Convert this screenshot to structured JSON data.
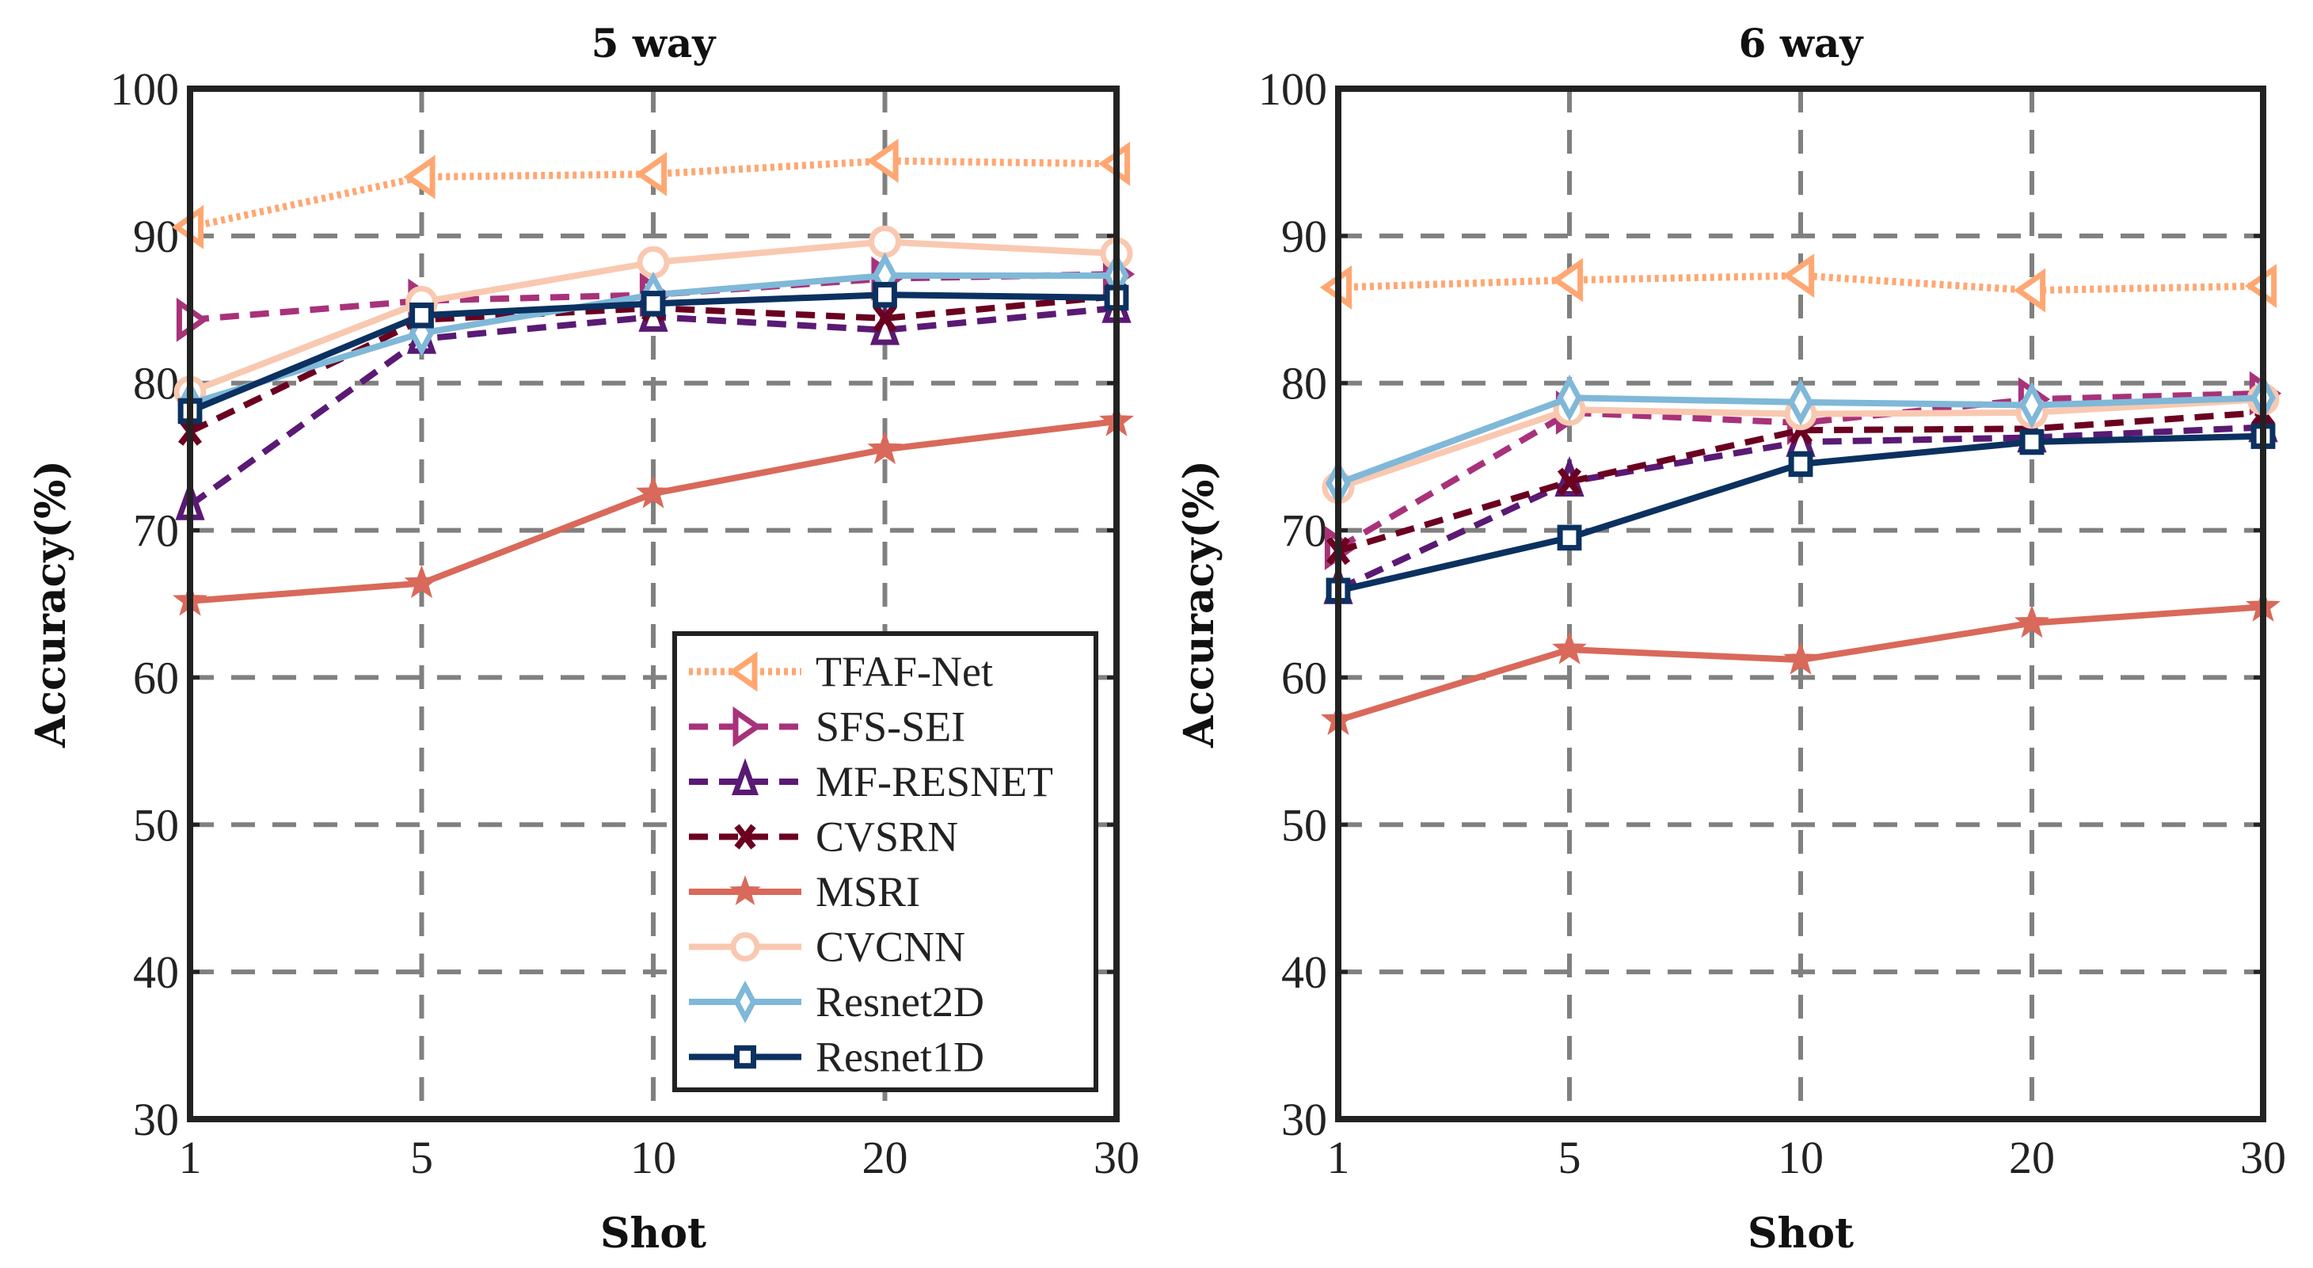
{
  "chart_data": [
    {
      "type": "line",
      "title": "5 way",
      "xlabel": "Shot",
      "ylabel": "Accuracy(%)",
      "categories": [
        "1",
        "5",
        "10",
        "20",
        "30"
      ],
      "ylim": [
        30,
        100
      ],
      "yticks": [
        "30",
        "40",
        "50",
        "60",
        "70",
        "80",
        "90",
        "100"
      ],
      "grid": true,
      "legend": "bottom-right",
      "series": [
        {
          "name": "TFAF-Net",
          "values": [
            90.6,
            94.0,
            94.2,
            95.1,
            94.9
          ],
          "color": "#FFA772",
          "dash": "dotted",
          "marker": "triangle-left"
        },
        {
          "name": "SFS-SEI",
          "values": [
            84.3,
            85.6,
            86.0,
            87.1,
            87.4
          ],
          "color": "#A8327A",
          "dash": "dashed",
          "marker": "triangle-right"
        },
        {
          "name": "MF-RESNET",
          "values": [
            71.7,
            83.0,
            84.5,
            83.6,
            85.1
          ],
          "color": "#5A1A74",
          "dash": "dashed",
          "marker": "triangle-up"
        },
        {
          "name": "CVSRN",
          "values": [
            76.7,
            84.3,
            85.1,
            84.4,
            85.9
          ],
          "color": "#6B0020",
          "dash": "dashed",
          "marker": "x"
        },
        {
          "name": "MSRI",
          "values": [
            65.2,
            66.4,
            72.5,
            75.5,
            77.4
          ],
          "color": "#D9695A",
          "dash": "solid",
          "marker": "star"
        },
        {
          "name": "CVCNN",
          "values": [
            79.4,
            85.5,
            88.2,
            89.6,
            88.8
          ],
          "color": "#F9C8B0",
          "dash": "solid",
          "marker": "circle"
        },
        {
          "name": "Resnet2D",
          "values": [
            78.6,
            83.4,
            86.0,
            87.3,
            87.3
          ],
          "color": "#7FB8D8",
          "dash": "solid",
          "marker": "diamond"
        },
        {
          "name": "Resnet1D",
          "values": [
            78.1,
            84.6,
            85.4,
            86.0,
            85.8
          ],
          "color": "#0B3160",
          "dash": "solid",
          "marker": "square"
        }
      ]
    },
    {
      "type": "line",
      "title": "6 way",
      "xlabel": "Shot",
      "ylabel": "Accuracy(%)",
      "categories": [
        "1",
        "5",
        "10",
        "20",
        "30"
      ],
      "ylim": [
        30,
        100
      ],
      "yticks": [
        "30",
        "40",
        "50",
        "60",
        "70",
        "80",
        "90",
        "100"
      ],
      "grid": true,
      "series": [
        {
          "name": "TFAF-Net",
          "values": [
            86.5,
            87.0,
            87.3,
            86.3,
            86.6
          ],
          "color": "#FFA772",
          "dash": "dotted",
          "marker": "triangle-left"
        },
        {
          "name": "SFS-SEI",
          "values": [
            68.8,
            78.0,
            77.3,
            78.9,
            79.3
          ],
          "color": "#A8327A",
          "dash": "dashed",
          "marker": "triangle-right"
        },
        {
          "name": "MF-RESNET",
          "values": [
            66.0,
            73.3,
            76.0,
            76.3,
            77.0
          ],
          "color": "#5A1A74",
          "dash": "dashed",
          "marker": "triangle-up"
        },
        {
          "name": "CVSRN",
          "values": [
            68.6,
            73.3,
            76.8,
            76.9,
            78.0
          ],
          "color": "#6B0020",
          "dash": "dashed",
          "marker": "x"
        },
        {
          "name": "MSRI",
          "values": [
            57.1,
            61.9,
            61.2,
            63.7,
            64.8
          ],
          "color": "#D9695A",
          "dash": "solid",
          "marker": "star"
        },
        {
          "name": "CVCNN",
          "values": [
            72.9,
            78.2,
            77.9,
            78.0,
            78.9
          ],
          "color": "#F9C8B0",
          "dash": "solid",
          "marker": "circle"
        },
        {
          "name": "Resnet2D",
          "values": [
            73.2,
            79.0,
            78.7,
            78.5,
            79.0
          ],
          "color": "#7FB8D8",
          "dash": "solid",
          "marker": "diamond"
        },
        {
          "name": "Resnet1D",
          "values": [
            65.9,
            69.5,
            74.5,
            76.0,
            76.4
          ],
          "color": "#0B3160",
          "dash": "solid",
          "marker": "square"
        }
      ]
    }
  ]
}
